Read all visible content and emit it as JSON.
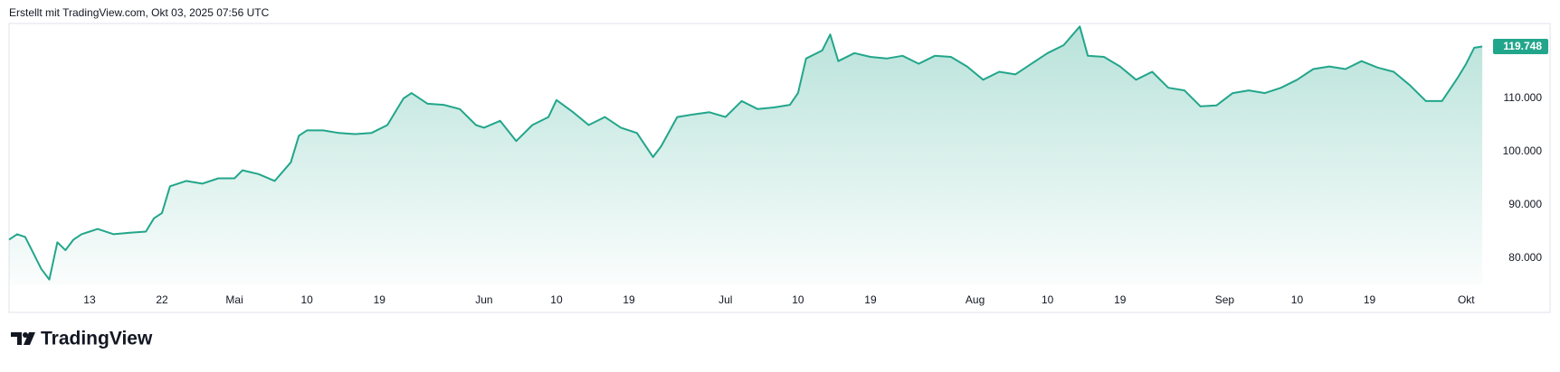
{
  "chart_data": {
    "type": "area",
    "subtitle": "Erstellt mit TradingView.com, Okt 03, 2025 07:56 UTC",
    "brand": "TradingView",
    "grid": false,
    "color": "#22a68b",
    "x": [
      "2025-04-03",
      "2025-04-04",
      "2025-04-05",
      "2025-04-06",
      "2025-04-07",
      "2025-04-08",
      "2025-04-09",
      "2025-04-10",
      "2025-04-11",
      "2025-04-12",
      "2025-04-13",
      "2025-04-14",
      "2025-04-16",
      "2025-04-18",
      "2025-04-20",
      "2025-04-21",
      "2025-04-22",
      "2025-04-23",
      "2025-04-25",
      "2025-04-27",
      "2025-04-29",
      "2025-05-01",
      "2025-05-02",
      "2025-05-04",
      "2025-05-06",
      "2025-05-08",
      "2025-05-09",
      "2025-05-10",
      "2025-05-12",
      "2025-05-14",
      "2025-05-16",
      "2025-05-18",
      "2025-05-20",
      "2025-05-22",
      "2025-05-23",
      "2025-05-25",
      "2025-05-27",
      "2025-05-29",
      "2025-05-31",
      "2025-06-01",
      "2025-06-03",
      "2025-06-05",
      "2025-06-07",
      "2025-06-09",
      "2025-06-10",
      "2025-06-12",
      "2025-06-14",
      "2025-06-16",
      "2025-06-18",
      "2025-06-20",
      "2025-06-22",
      "2025-06-23",
      "2025-06-25",
      "2025-06-27",
      "2025-06-29",
      "2025-07-01",
      "2025-07-03",
      "2025-07-05",
      "2025-07-07",
      "2025-07-09",
      "2025-07-10",
      "2025-07-11",
      "2025-07-13",
      "2025-07-14",
      "2025-07-15",
      "2025-07-17",
      "2025-07-19",
      "2025-07-21",
      "2025-07-23",
      "2025-07-25",
      "2025-07-27",
      "2025-07-29",
      "2025-07-31",
      "2025-08-02",
      "2025-08-04",
      "2025-08-06",
      "2025-08-08",
      "2025-08-10",
      "2025-08-12",
      "2025-08-14",
      "2025-08-15",
      "2025-08-17",
      "2025-08-19",
      "2025-08-21",
      "2025-08-23",
      "2025-08-25",
      "2025-08-27",
      "2025-08-29",
      "2025-08-31",
      "2025-09-02",
      "2025-09-04",
      "2025-09-06",
      "2025-09-08",
      "2025-09-10",
      "2025-09-12",
      "2025-09-14",
      "2025-09-16",
      "2025-09-18",
      "2025-09-20",
      "2025-09-22",
      "2025-09-24",
      "2025-09-26",
      "2025-09-28",
      "2025-09-30",
      "2025-10-01",
      "2025-10-02",
      "2025-10-03"
    ],
    "series": [
      {
        "values": [
          83.5,
          84.5,
          84,
          81,
          78,
          76,
          83,
          81.5,
          83.5,
          84.5,
          85,
          85.5,
          84.5,
          84.8,
          85,
          87.5,
          88.5,
          93.5,
          94.5,
          94,
          95,
          95,
          96.5,
          95.8,
          94.5,
          98,
          103,
          104,
          104,
          103.5,
          103.3,
          103.5,
          105,
          110,
          111,
          109,
          108.8,
          108,
          105,
          104.5,
          105.8,
          102,
          105,
          106.5,
          109.7,
          107.5,
          105,
          106.5,
          104.5,
          103.5,
          99,
          101,
          106.5,
          107,
          107.4,
          106.5,
          109.5,
          108,
          108.3,
          108.8,
          111,
          117.5,
          119,
          122,
          117,
          118.5,
          117.8,
          117.5,
          118,
          116.5,
          118,
          117.8,
          116,
          113.5,
          115,
          114.5,
          116.5,
          118.5,
          120,
          123.5,
          118,
          117.8,
          116,
          113.5,
          115,
          112,
          111.5,
          108.5,
          108.7,
          111,
          111.5,
          111,
          112,
          113.5,
          115.5,
          116,
          115.5,
          117,
          115.8,
          115,
          112.5,
          109.5,
          109.5,
          114,
          116.5,
          119.5,
          119.748
        ]
      }
    ],
    "xlim": [
      "2025-04-03",
      "2025-10-04"
    ],
    "xticks": [
      {
        "value": "2025-04-13",
        "label": "13"
      },
      {
        "value": "2025-04-22",
        "label": "22"
      },
      {
        "value": "2025-05-01",
        "label": "Mai"
      },
      {
        "value": "2025-05-10",
        "label": "10"
      },
      {
        "value": "2025-05-19",
        "label": "19"
      },
      {
        "value": "2025-06-01",
        "label": "Jun"
      },
      {
        "value": "2025-06-10",
        "label": "10"
      },
      {
        "value": "2025-06-19",
        "label": "19"
      },
      {
        "value": "2025-07-01",
        "label": "Jul"
      },
      {
        "value": "2025-07-10",
        "label": "10"
      },
      {
        "value": "2025-07-19",
        "label": "19"
      },
      {
        "value": "2025-08-01",
        "label": "Aug"
      },
      {
        "value": "2025-08-10",
        "label": "10"
      },
      {
        "value": "2025-08-19",
        "label": "19"
      },
      {
        "value": "2025-09-01",
        "label": "Sep"
      },
      {
        "value": "2025-09-10",
        "label": "10"
      },
      {
        "value": "2025-09-19",
        "label": "19"
      },
      {
        "value": "2025-10-01",
        "label": "Okt"
      }
    ],
    "ylim": [
      75,
      124
    ],
    "yticks": [
      {
        "value": 80,
        "label": "80.000"
      },
      {
        "value": 90,
        "label": "90.000"
      },
      {
        "value": 100,
        "label": "100.000"
      },
      {
        "value": 110,
        "label": "110.000"
      }
    ]
  }
}
